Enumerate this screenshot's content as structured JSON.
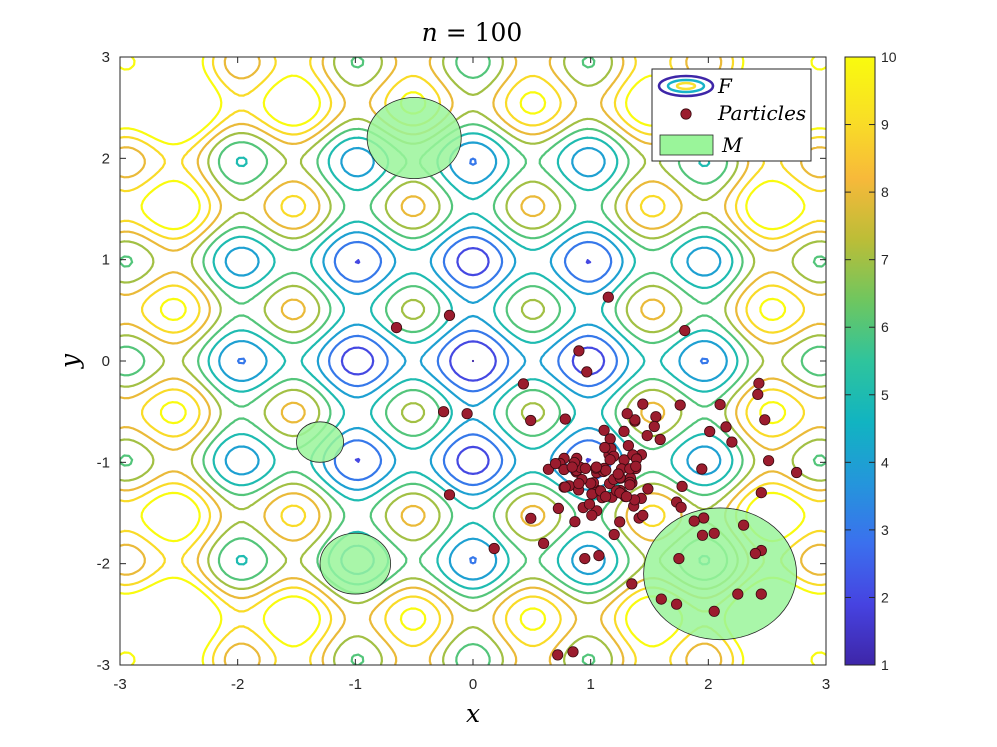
{
  "figure": {
    "title_var": "n",
    "title_eq": " = 100",
    "xlabel": "x",
    "ylabel": "y"
  },
  "legend": {
    "contour_label": "F",
    "particles_label": "Particles",
    "region_label": "M"
  },
  "colors": {
    "particle_fill": "#9b1c2e",
    "region_fill": "#9af59a",
    "colormap": [
      "#3e26a8",
      "#4643e1",
      "#3b70ee",
      "#2496db",
      "#11b4c1",
      "#2fc49c",
      "#6fc65f",
      "#bcbd37",
      "#f7b93a",
      "#f9df25",
      "#f9fb0e"
    ]
  },
  "chart_data": {
    "type": "contour",
    "title": "n = 100",
    "xlabel": "x",
    "ylabel": "y",
    "xlim": [
      -3,
      3
    ],
    "ylim": [
      -3,
      3
    ],
    "xticks": [
      "-3",
      "-2",
      "-1",
      "0",
      "1",
      "2",
      "3"
    ],
    "yticks": [
      "-3",
      "-2",
      "-1",
      "0",
      "1",
      "2",
      "3"
    ],
    "colorbar": {
      "min": 1,
      "max": 10,
      "ticks": [
        "1",
        "2",
        "3",
        "4",
        "5",
        "6",
        "7",
        "8",
        "9",
        "10"
      ]
    },
    "contour_levels": [
      1,
      2,
      3,
      4,
      5,
      6,
      7,
      8,
      9,
      10
    ],
    "legend_entries": [
      "F",
      "Particles",
      "M"
    ],
    "regions": [
      {
        "cx": -0.5,
        "cy": 2.2,
        "r": 0.4
      },
      {
        "cx": -1.3,
        "cy": -0.8,
        "r": 0.2
      },
      {
        "cx": -1.0,
        "cy": -2.0,
        "r": 0.3
      },
      {
        "cx": 2.1,
        "cy": -2.1,
        "r": 0.65
      }
    ],
    "particles": {
      "count": 100,
      "cluster_center": [
        1.15,
        -1.1
      ],
      "cluster_spread": [
        0.35,
        0.3
      ],
      "outliers": [
        [
          -0.65,
          0.33
        ],
        [
          -0.2,
          0.45
        ],
        [
          0.9,
          0.1
        ],
        [
          1.15,
          0.63
        ],
        [
          1.8,
          0.3
        ],
        [
          -0.25,
          -0.5
        ],
        [
          -0.05,
          -0.52
        ],
        [
          -0.2,
          -1.32
        ],
        [
          0.18,
          -1.85
        ],
        [
          0.6,
          -1.8
        ],
        [
          0.72,
          -2.9
        ],
        [
          0.85,
          -2.87
        ],
        [
          0.95,
          -1.95
        ],
        [
          1.07,
          -1.92
        ],
        [
          1.35,
          -2.2
        ],
        [
          1.6,
          -2.35
        ],
        [
          1.73,
          -2.4
        ],
        [
          2.05,
          -2.47
        ],
        [
          2.25,
          -2.3
        ],
        [
          2.45,
          -2.3
        ],
        [
          2.45,
          -1.87
        ],
        [
          2.45,
          -1.3
        ],
        [
          2.75,
          -1.1
        ],
        [
          2.48,
          -0.58
        ],
        [
          2.42,
          -0.33
        ],
        [
          2.43,
          -0.22
        ],
        [
          2.1,
          -0.43
        ],
        [
          2.15,
          -0.65
        ],
        [
          2.2,
          -0.8
        ],
        [
          1.88,
          -1.58
        ],
        [
          1.95,
          -1.72
        ],
        [
          2.05,
          -1.7
        ],
        [
          2.3,
          -1.62
        ],
        [
          2.4,
          -1.9
        ],
        [
          1.75,
          -1.95
        ]
      ]
    }
  }
}
